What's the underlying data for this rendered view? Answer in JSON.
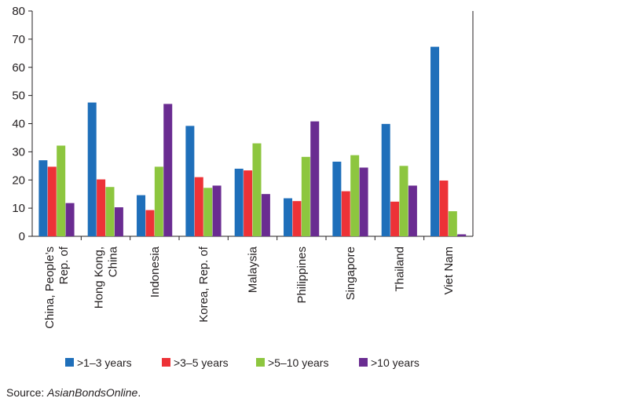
{
  "chart_data": {
    "type": "bar",
    "title": "",
    "xlabel": "",
    "ylabel": "",
    "ylim": [
      0,
      80
    ],
    "yticks": [
      0,
      10,
      20,
      30,
      40,
      50,
      60,
      70,
      80
    ],
    "grid": false,
    "legend_position": "bottom",
    "categories": [
      [
        "China, People’s",
        "Rep. of"
      ],
      [
        "Hong Kong,",
        "China"
      ],
      [
        "Indonesia"
      ],
      [
        "Korea, Rep. of"
      ],
      [
        "Malaysia"
      ],
      [
        "Philippines"
      ],
      [
        "Singapore"
      ],
      [
        "Thailand"
      ],
      [
        "Viet Nam"
      ]
    ],
    "series": [
      {
        "name": ">1–3 years",
        "color": "#1f6fba",
        "values": [
          27.0,
          47.5,
          14.6,
          39.2,
          24.0,
          13.5,
          26.5,
          39.9,
          67.3
        ]
      },
      {
        "name": ">3–5 years",
        "color": "#ed3237",
        "values": [
          24.7,
          20.2,
          9.3,
          21.0,
          23.4,
          12.5,
          16.0,
          12.3,
          19.8
        ]
      },
      {
        "name": ">5–10 years",
        "color": "#8dc63f",
        "values": [
          32.2,
          17.5,
          24.7,
          17.2,
          33.0,
          28.2,
          28.8,
          25.0,
          8.9
        ]
      },
      {
        "name": ">10 years",
        "color": "#6a2c91",
        "values": [
          11.8,
          10.3,
          47.0,
          18.0,
          15.0,
          40.8,
          24.4,
          18.0,
          0.7
        ]
      }
    ]
  },
  "source": {
    "prefix": "Source: ",
    "name": "AsianBondsOnline",
    "suffix": "."
  }
}
